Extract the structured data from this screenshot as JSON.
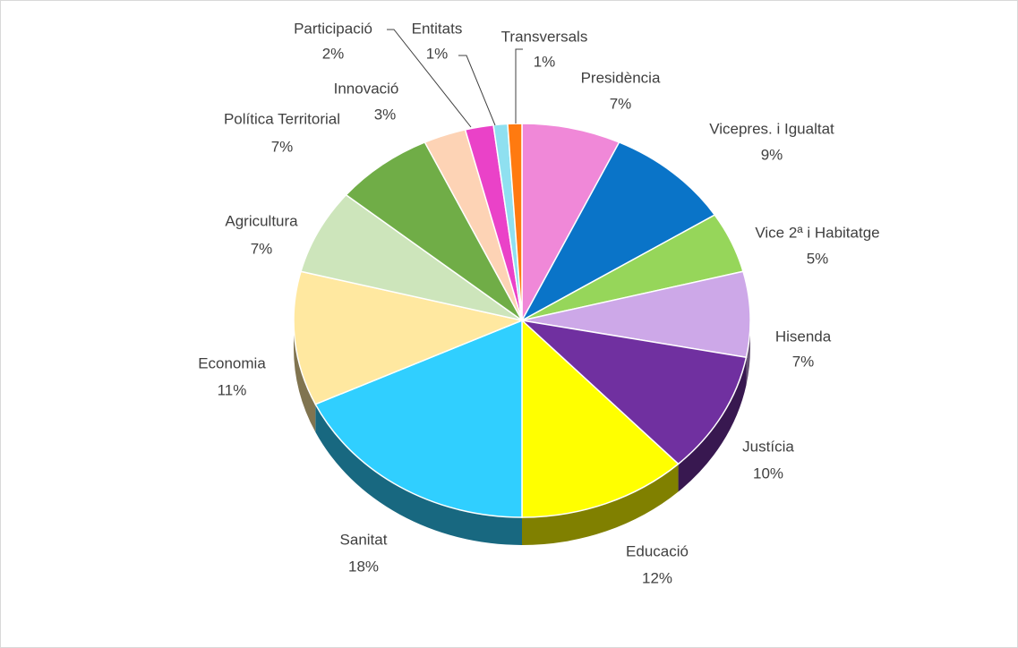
{
  "chart_data": {
    "type": "pie3d",
    "categories": [
      "Presidència",
      "Vicepres. i Igualtat",
      "Vice 2ª i Habitatge",
      "Hisenda",
      "Justícia",
      "Educació",
      "Sanitat",
      "Economia",
      "Agricultura",
      "Política Territorial",
      "Innovació",
      "Participació",
      "Entitats",
      "Transversals"
    ],
    "values": [
      7,
      9,
      5,
      7,
      10,
      12,
      18,
      11,
      7,
      7,
      3,
      2,
      1,
      1
    ],
    "value_labels": [
      "7%",
      "9%",
      "5%",
      "7%",
      "10%",
      "12%",
      "18%",
      "11%",
      "7%",
      "7%",
      "3%",
      "2%",
      "1%",
      "1%"
    ],
    "colors": [
      "#f088d8",
      "#0a74c8",
      "#96d65a",
      "#cda8e8",
      "#7030a0",
      "#ffff00",
      "#30cfff",
      "#ffe8a0",
      "#cde5bb",
      "#70ad47",
      "#fdd3b5",
      "#ea42c8",
      "#8fe0f0",
      "#ff7a10"
    ]
  }
}
